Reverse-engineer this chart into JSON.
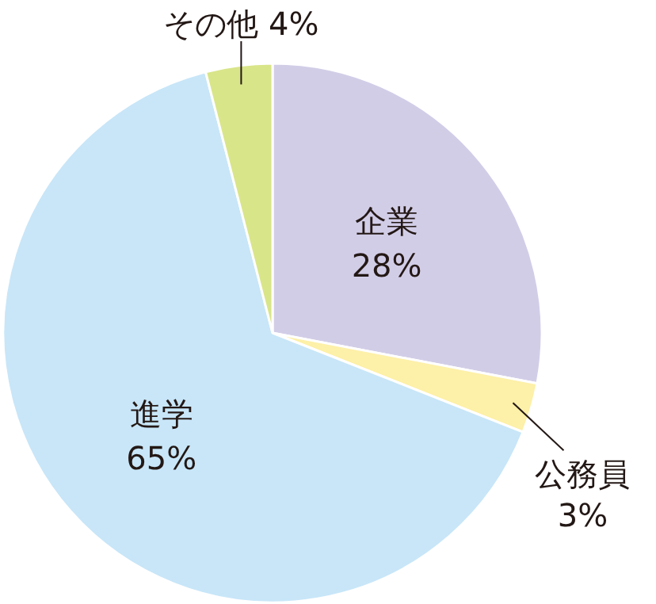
{
  "chart_data": {
    "type": "pie",
    "categories": [
      "企業",
      "公務員",
      "進学",
      "その他"
    ],
    "values": [
      28,
      3,
      65,
      4
    ],
    "value_labels": [
      "28%",
      "3%",
      "65%",
      "4%"
    ],
    "colors": [
      "#d2cde7",
      "#fdf0a8",
      "#c8e6f8",
      "#d9e589"
    ],
    "legend": false
  }
}
